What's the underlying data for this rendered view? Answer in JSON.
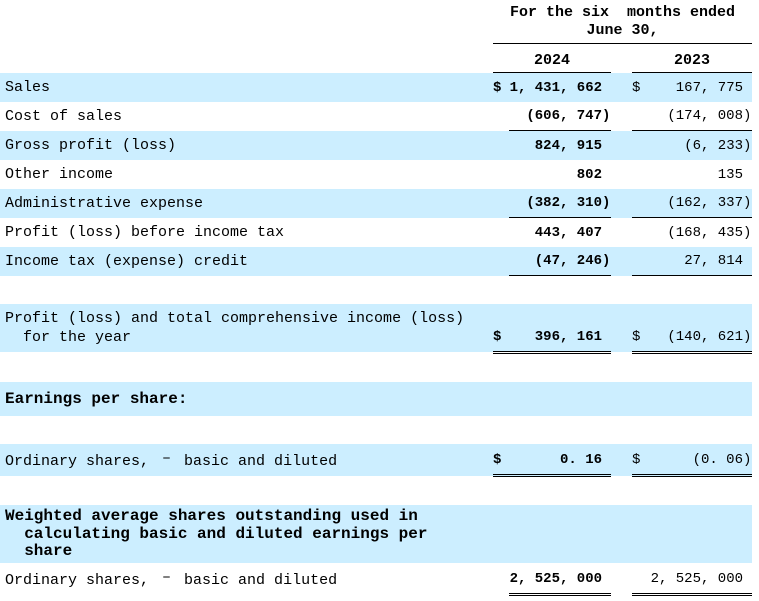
{
  "colors": {
    "row_highlight": "#cceeff",
    "text": "#000000",
    "rule": "#000000"
  },
  "header": {
    "period": "For the six  months ended\nJune 30,",
    "years": [
      "2024",
      "2023"
    ]
  },
  "rows": [
    {
      "kind": "data",
      "bg": true,
      "rule": "none",
      "label": "Sales",
      "cells": [
        {
          "sym": "$",
          "num": "1, 431, 662",
          "paren": ""
        },
        {
          "sym": "$",
          "num": "167, 775",
          "paren": ""
        }
      ]
    },
    {
      "kind": "data",
      "bg": false,
      "rule": "single",
      "label": "Cost of sales",
      "cells": [
        {
          "sym": "",
          "num": "(606, 747",
          "paren": ")"
        },
        {
          "sym": "",
          "num": "(174, 008",
          "paren": ")"
        }
      ]
    },
    {
      "kind": "data",
      "bg": true,
      "rule": "none",
      "label": "Gross profit (loss)",
      "cells": [
        {
          "sym": "",
          "num": "824, 915",
          "paren": ""
        },
        {
          "sym": "",
          "num": "(6, 233",
          "paren": ")"
        }
      ]
    },
    {
      "kind": "data",
      "bg": false,
      "rule": "none",
      "label": "Other income",
      "cells": [
        {
          "sym": "",
          "num": "802",
          "paren": ""
        },
        {
          "sym": "",
          "num": "135",
          "paren": ""
        }
      ]
    },
    {
      "kind": "data",
      "bg": true,
      "rule": "single",
      "label": "Administrative expense",
      "cells": [
        {
          "sym": "",
          "num": "(382, 310",
          "paren": ")"
        },
        {
          "sym": "",
          "num": "(162, 337",
          "paren": ")"
        }
      ]
    },
    {
      "kind": "data",
      "bg": false,
      "rule": "none",
      "label": "Profit (loss) before income tax",
      "cells": [
        {
          "sym": "",
          "num": "443, 407",
          "paren": ""
        },
        {
          "sym": "",
          "num": "(168, 435",
          "paren": ")"
        }
      ]
    },
    {
      "kind": "data",
      "bg": true,
      "rule": "single",
      "label": "Income tax (expense) credit",
      "cells": [
        {
          "sym": "",
          "num": "(47, 246",
          "paren": ")"
        },
        {
          "sym": "",
          "num": "27, 814",
          "paren": ""
        }
      ]
    },
    {
      "kind": "spacer"
    },
    {
      "kind": "data",
      "bg": true,
      "rule": "double",
      "label": "Profit (loss) and total comprehensive income (loss)\n  for the year",
      "cells": [
        {
          "sym": "$",
          "num": "396, 161",
          "paren": ""
        },
        {
          "sym": "$",
          "num": "(140, 621",
          "paren": ")"
        }
      ]
    },
    {
      "kind": "spacer"
    },
    {
      "kind": "section",
      "bg": true,
      "label": "Earnings per share:"
    },
    {
      "kind": "spacer"
    },
    {
      "kind": "data",
      "bg": true,
      "rule": "double",
      "label_pre": "Ordinary shares,",
      "dash": "–",
      "label_post": "basic and diluted",
      "cells": [
        {
          "sym": "$",
          "num": "0. 16",
          "paren": ""
        },
        {
          "sym": "$",
          "num": "(0. 06",
          "paren": ")"
        }
      ]
    },
    {
      "kind": "spacer"
    },
    {
      "kind": "section",
      "bg": true,
      "label": "Weighted average shares outstanding used in\n  calculating basic and diluted earnings per\n  share"
    },
    {
      "kind": "data",
      "bg": false,
      "rule": "double",
      "label_pre": "Ordinary shares,",
      "dash": "–",
      "label_post": "basic and diluted",
      "cells": [
        {
          "sym": "",
          "num": "2, 525, 000",
          "paren": ""
        },
        {
          "sym": "",
          "num": "2, 525, 000",
          "paren": ""
        }
      ]
    }
  ]
}
